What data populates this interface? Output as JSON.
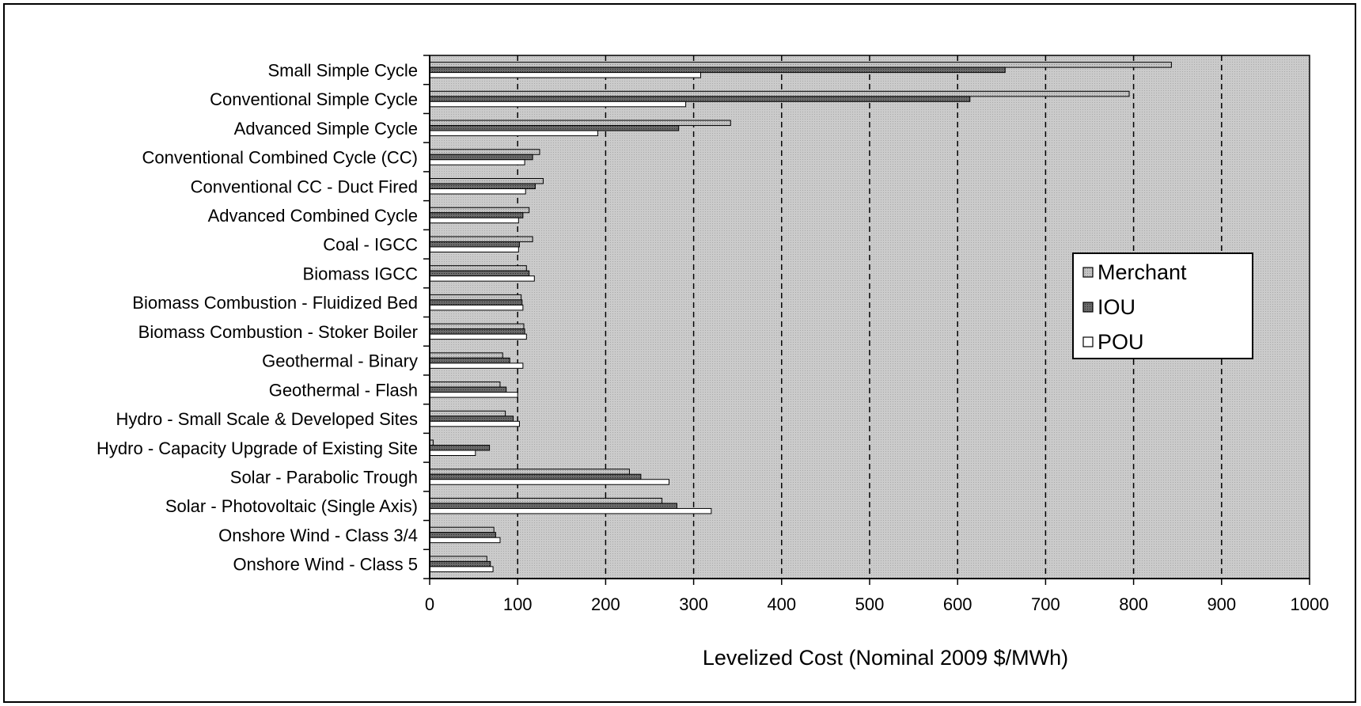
{
  "chart_data": {
    "type": "bar",
    "orientation": "horizontal",
    "categories": [
      "Small Simple Cycle",
      "Conventional Simple Cycle",
      "Advanced Simple Cycle",
      "Conventional Combined Cycle (CC)",
      "Conventional CC - Duct Fired",
      "Advanced Combined Cycle",
      "Coal - IGCC",
      "Biomass IGCC",
      "Biomass Combustion  - Fluidized Bed",
      "Biomass Combustion  - Stoker Boiler",
      "Geothermal - Binary",
      "Geothermal - Flash",
      "Hydro - Small Scale & Developed Sites",
      "Hydro - Capacity Upgrade of Existing Site",
      "Solar - Parabolic Trough",
      "Solar - Photovoltaic (Single Axis)",
      "Onshore Wind - Class 3/4",
      "Onshore Wind - Class 5"
    ],
    "series": [
      {
        "name": "Merchant",
        "values": [
          843,
          795,
          342,
          125,
          129,
          113,
          117,
          110,
          104,
          107,
          83,
          80,
          86,
          4,
          227,
          264,
          73,
          65
        ]
      },
      {
        "name": "IOU",
        "values": [
          654,
          614,
          283,
          117,
          120,
          106,
          102,
          113,
          105,
          108,
          91,
          87,
          95,
          68,
          240,
          281,
          75,
          69
        ]
      },
      {
        "name": "POU",
        "values": [
          308,
          291,
          191,
          108,
          109,
          101,
          101,
          119,
          106,
          110,
          106,
          100,
          102,
          52,
          272,
          320,
          80,
          72
        ]
      }
    ],
    "series_colors": {
      "Merchant": "#bdbdbd",
      "IOU": "#555555",
      "POU": "#ffffff"
    },
    "plot_background": "#c9c9c9",
    "xlim": [
      0,
      1000
    ],
    "xticks": [
      "0",
      "100",
      "200",
      "300",
      "400",
      "500",
      "600",
      "700",
      "800",
      "900",
      "1000"
    ],
    "xlabel": "Levelized Cost (Nominal 2009 $/MWh)",
    "grid": "vertical dashed",
    "legend": {
      "placement": "right",
      "entries": [
        "Merchant",
        "IOU",
        "POU"
      ]
    }
  }
}
